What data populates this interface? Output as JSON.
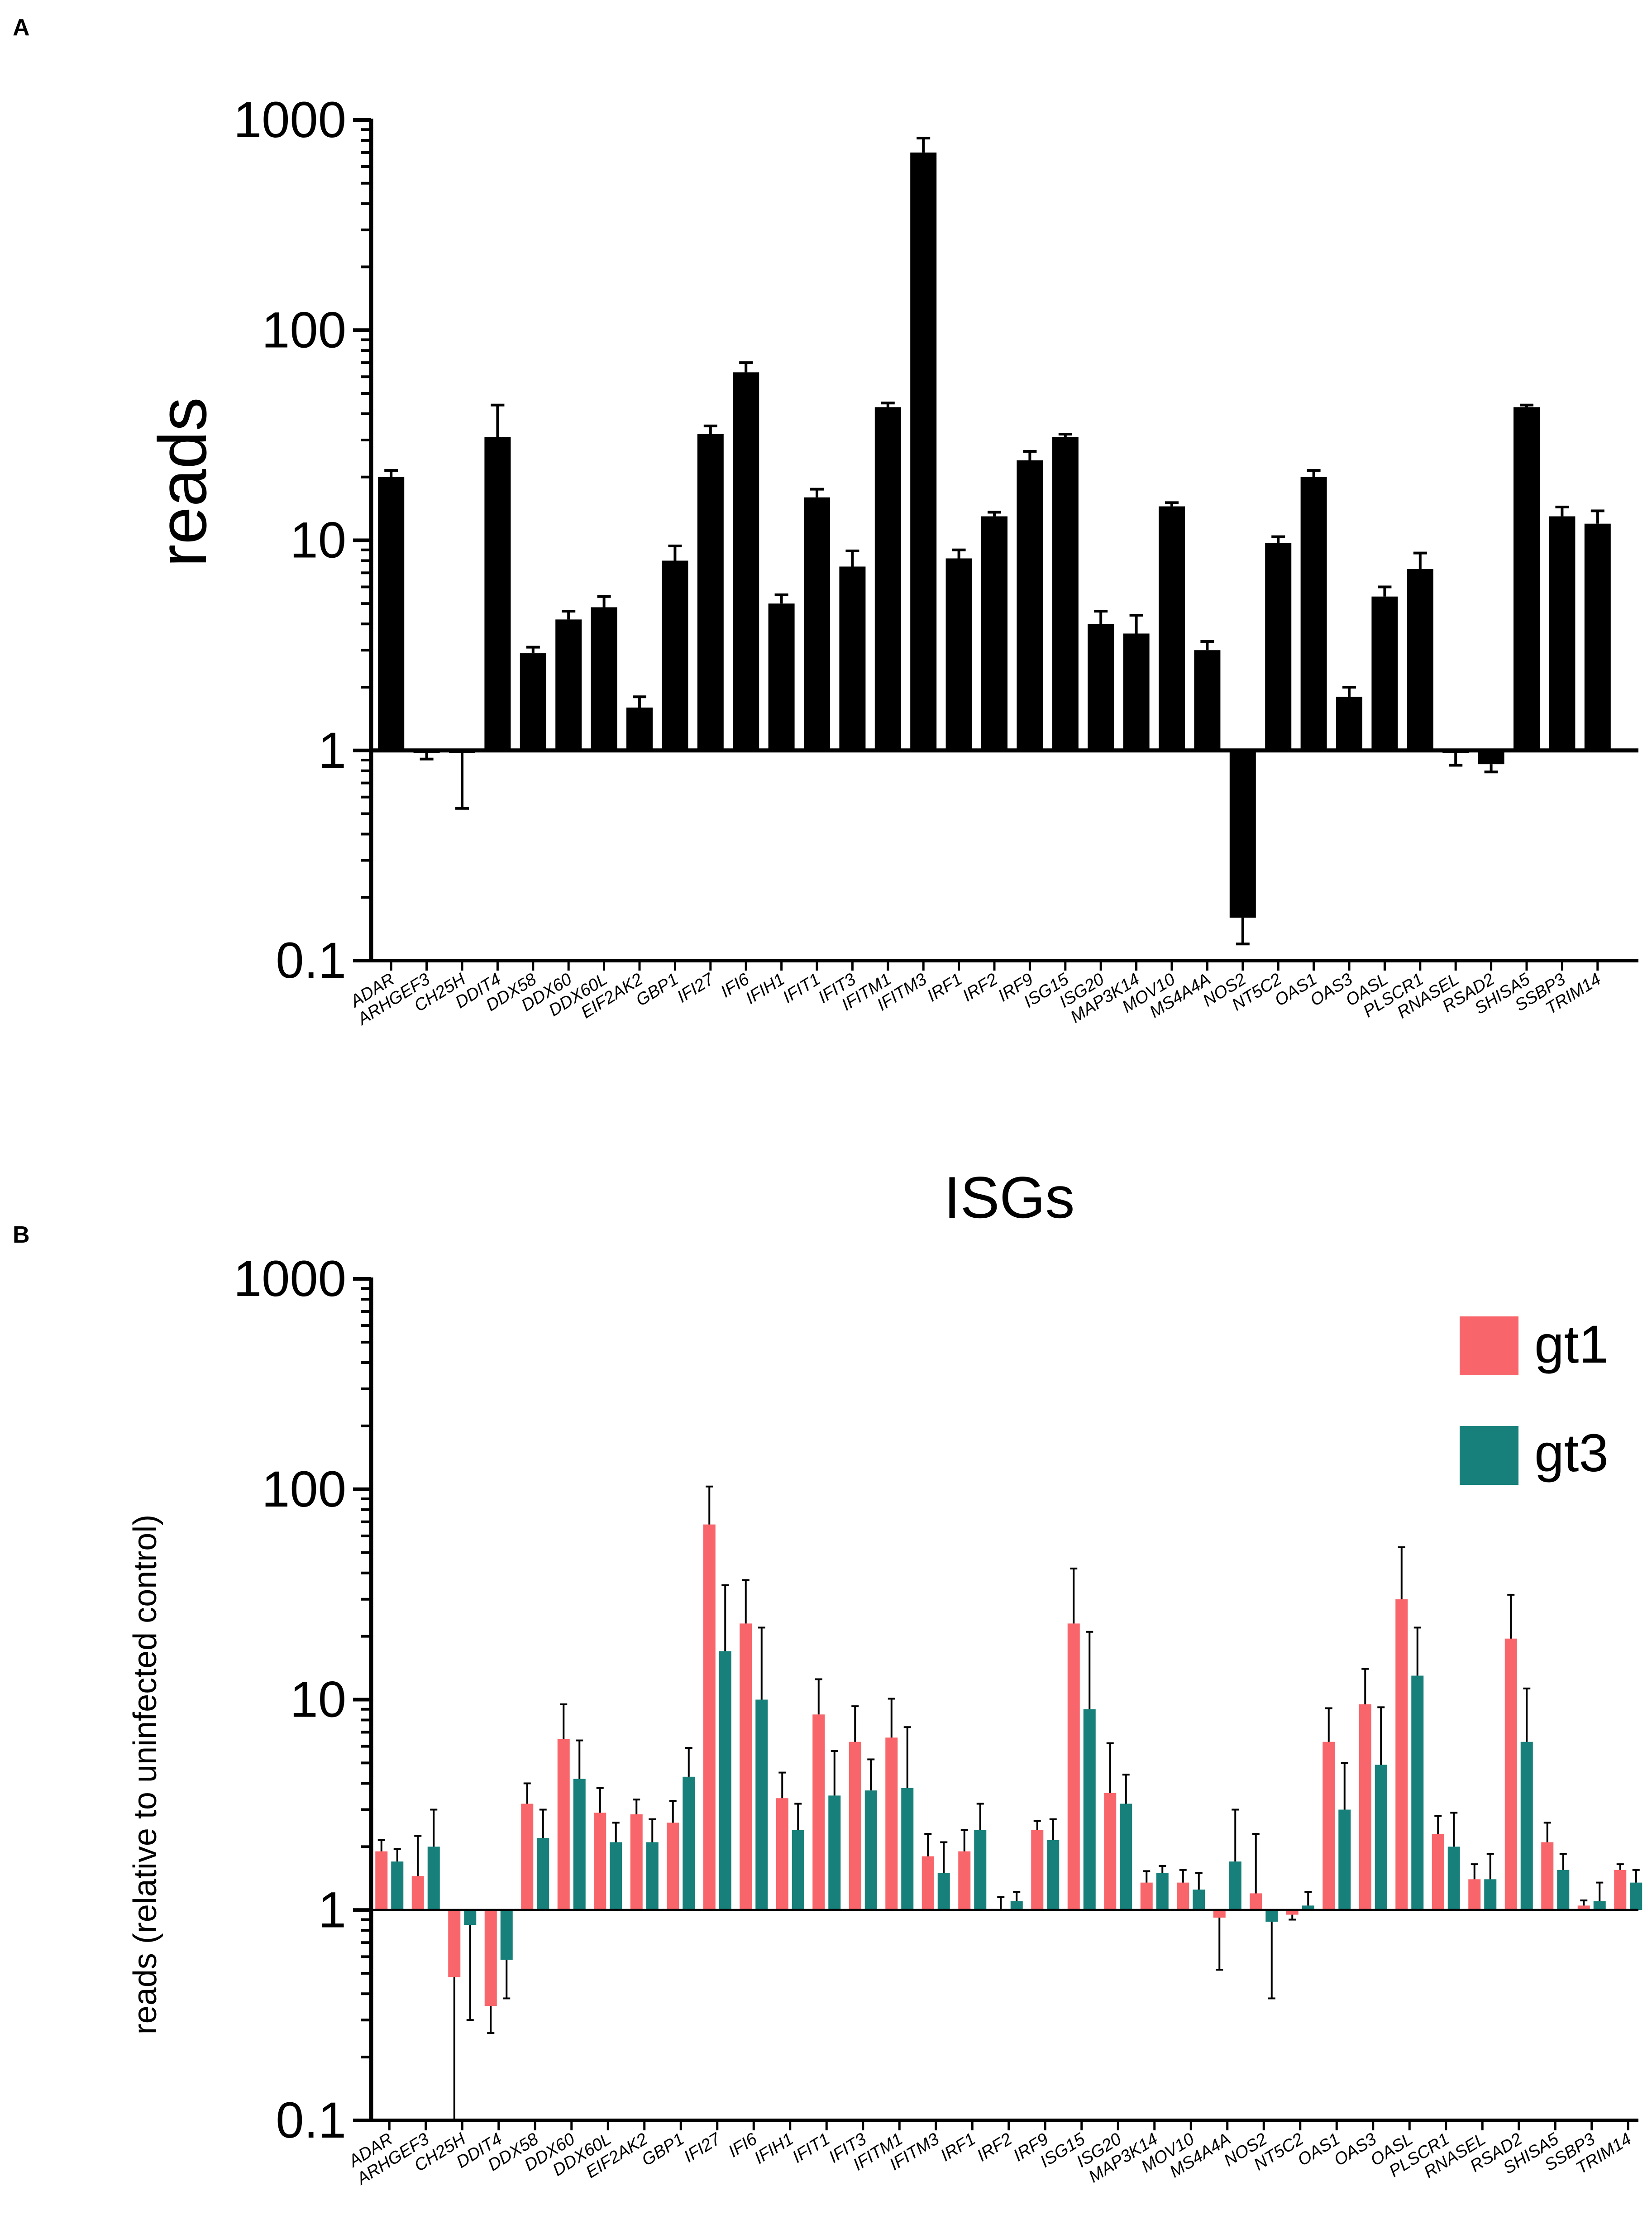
{
  "chart_data": [
    {
      "panel": "A",
      "type": "bar",
      "scale": "log",
      "baseline": 1,
      "title": "",
      "xlabel": "",
      "ylabel": "reads",
      "ylim": [
        0.1,
        1000
      ],
      "yticks": [
        "0.1",
        "1",
        "10",
        "100",
        "1000"
      ],
      "categories": [
        "ADAR",
        "ARHGEF3",
        "CH25H",
        "DDIT4",
        "DDX58",
        "DDX60",
        "DDX60L",
        "EIF2AK2",
        "GBP1",
        "IFI27",
        "IFI6",
        "IFIH1",
        "IFIT1",
        "IFIT3",
        "IFITM1",
        "IFITM3",
        "IRF1",
        "IRF2",
        "IRF9",
        "ISG15",
        "ISG20",
        "MAP3K14",
        "MOV10",
        "MS4A4A",
        "NOS2",
        "NT5C2",
        "OAS1",
        "OAS3",
        "OASL",
        "PLSCR1",
        "RNASEL",
        "RSAD2",
        "SHISA5",
        "SSBP3",
        "TRIM14"
      ],
      "series": [
        {
          "name": "reads",
          "color": "#000000",
          "values": [
            20,
            0.97,
            0.97,
            31,
            2.9,
            4.2,
            4.8,
            1.6,
            8.0,
            32,
            63,
            5.0,
            16,
            7.5,
            43,
            700,
            8.2,
            13,
            24,
            31,
            4.0,
            3.6,
            14.5,
            3.0,
            0.16,
            9.7,
            20,
            1.8,
            5.4,
            7.3,
            0.97,
            0.86,
            43,
            13,
            12
          ],
          "errors": [
            1.5,
            0.06,
            0.44,
            13,
            0.2,
            0.4,
            0.6,
            0.2,
            1.4,
            3,
            7,
            0.5,
            1.5,
            1.4,
            2,
            120,
            0.8,
            0.6,
            2.5,
            1,
            0.6,
            0.8,
            0.6,
            0.3,
            0.04,
            0.7,
            1.5,
            0.2,
            0.6,
            1.4,
            0.12,
            0.07,
            1,
            1.4,
            1.8
          ]
        }
      ]
    },
    {
      "panel": "B",
      "type": "bar",
      "scale": "log",
      "baseline": 1,
      "title": "ISGs",
      "xlabel": "",
      "ylabel": "reads (relative to uninfected control)",
      "ylim": [
        0.1,
        1000
      ],
      "yticks": [
        "0.1",
        "1",
        "10",
        "100",
        "1000"
      ],
      "legend_position": "top-right",
      "categories": [
        "ADAR",
        "ARHGEF3",
        "CH25H",
        "DDIT4",
        "DDX58",
        "DDX60",
        "DDX60L",
        "EIF2AK2",
        "GBP1",
        "IFI27",
        "IFI6",
        "IFIH1",
        "IFIT1",
        "IFIT3",
        "IFITM1",
        "IFITM3",
        "IRF1",
        "IRF2",
        "IRF9",
        "ISG15",
        "ISG20",
        "MAP3K14",
        "MOV10",
        "MS4A4A",
        "NOS2",
        "NT5C2",
        "OAS1",
        "OAS3",
        "OASL",
        "PLSCR1",
        "RNASEL",
        "RSAD2",
        "SHISA5",
        "SSBP3",
        "TRIM14"
      ],
      "series": [
        {
          "name": "gt1",
          "color": "#F8656A",
          "values": [
            1.9,
            1.45,
            0.48,
            0.35,
            3.2,
            6.5,
            2.9,
            2.85,
            2.6,
            68,
            23,
            3.4,
            8.5,
            6.3,
            6.6,
            1.8,
            1.9,
            1.0,
            2.4,
            23,
            3.6,
            1.35,
            1.35,
            0.92,
            1.2,
            0.95,
            6.3,
            9.5,
            30,
            2.3,
            1.4,
            19.5,
            2.1,
            1.05,
            1.55
          ],
          "errors": [
            0.25,
            0.8,
            0.45,
            0.09,
            0.8,
            3.0,
            0.9,
            0.5,
            0.7,
            35,
            14,
            1.1,
            4.0,
            3.0,
            3.5,
            0.5,
            0.5,
            0.15,
            0.25,
            19,
            2.6,
            0.18,
            0.2,
            0.4,
            1.1,
            0.05,
            2.8,
            4.5,
            23,
            0.5,
            0.25,
            12,
            0.5,
            0.06,
            0.1
          ]
        },
        {
          "name": "gt3",
          "color": "#17807A",
          "values": [
            1.7,
            2.0,
            0.85,
            0.58,
            2.2,
            4.2,
            2.1,
            2.1,
            4.3,
            17,
            10,
            2.4,
            3.5,
            3.7,
            3.8,
            1.5,
            2.4,
            1.1,
            2.15,
            9.0,
            3.2,
            1.5,
            1.25,
            1.7,
            0.88,
            1.05,
            3.0,
            4.9,
            13,
            2.0,
            1.4,
            6.3,
            1.55,
            1.1,
            1.35
          ],
          "errors": [
            0.25,
            1.0,
            0.55,
            0.2,
            0.8,
            2.2,
            0.5,
            0.6,
            1.6,
            18,
            12,
            0.8,
            2.2,
            1.5,
            3.6,
            0.6,
            0.8,
            0.12,
            0.55,
            12,
            1.2,
            0.12,
            0.25,
            1.3,
            0.5,
            0.17,
            2.0,
            4.3,
            9,
            0.9,
            0.45,
            5,
            0.3,
            0.25,
            0.2
          ]
        }
      ]
    }
  ]
}
